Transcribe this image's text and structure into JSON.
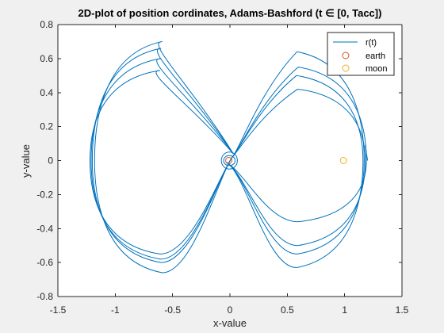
{
  "window": {
    "background": "#f0f0f0"
  },
  "chart_data": {
    "type": "line",
    "title": "2D-plot of position cordinates, Adams-Bashford (t ∈ [0, Tacc])",
    "xlabel": "x-value",
    "ylabel": "y-value",
    "xlim": [
      -1.5,
      1.5
    ],
    "ylim": [
      -0.8,
      0.8
    ],
    "xticks": [
      -1.5,
      -1,
      -0.5,
      0,
      0.5,
      1,
      1.5
    ],
    "yticks": [
      -0.8,
      -0.6,
      -0.4,
      -0.2,
      0,
      0.2,
      0.4,
      0.6,
      0.8
    ],
    "xtick_labels": [
      "-1.5",
      "-1",
      "-0.5",
      "0",
      "0.5",
      "1",
      "1.5"
    ],
    "ytick_labels": [
      "-0.8",
      "-0.6",
      "-0.4",
      "-0.2",
      "0",
      "0.2",
      "0.4",
      "0.6",
      "0.8"
    ],
    "grid": false,
    "box": true,
    "legend_position": "top-right",
    "legend": [
      {
        "label": "r(t)",
        "marker": "line",
        "color": "#0072BD"
      },
      {
        "label": "earth",
        "marker": "circle",
        "color": "#D95319"
      },
      {
        "label": "moon",
        "marker": "circle",
        "color": "#EDB120"
      }
    ],
    "series": [
      {
        "name": "r(t)",
        "kind": "line",
        "color": "#0072BD",
        "loops": [
          {
            "left_x": -1.18,
            "left_top": 0.7,
            "left_bottom": -0.66,
            "right_x": 1.16,
            "right_top": 0.5,
            "right_bottom": -0.63
          },
          {
            "left_x": -1.2,
            "left_top": 0.66,
            "left_bottom": -0.6,
            "right_x": 1.17,
            "right_top": 0.64,
            "right_bottom": -0.55
          },
          {
            "left_x": -1.22,
            "left_top": 0.53,
            "left_bottom": -0.55,
            "right_x": 1.18,
            "right_top": 0.42,
            "right_bottom": -0.5
          },
          {
            "left_x": -1.21,
            "left_top": 0.6,
            "left_bottom": -0.58,
            "right_x": 1.19,
            "right_top": 0.55,
            "right_bottom": -0.36
          }
        ],
        "end_point": {
          "x": 1.2,
          "y": 0.0
        }
      },
      {
        "name": "earth",
        "kind": "point",
        "color": "#D95319",
        "points": [
          {
            "x": -0.01,
            "y": 0.0
          }
        ]
      },
      {
        "name": "moon",
        "kind": "point",
        "color": "#EDB120",
        "points": [
          {
            "x": 0.99,
            "y": 0.0
          }
        ]
      }
    ]
  }
}
